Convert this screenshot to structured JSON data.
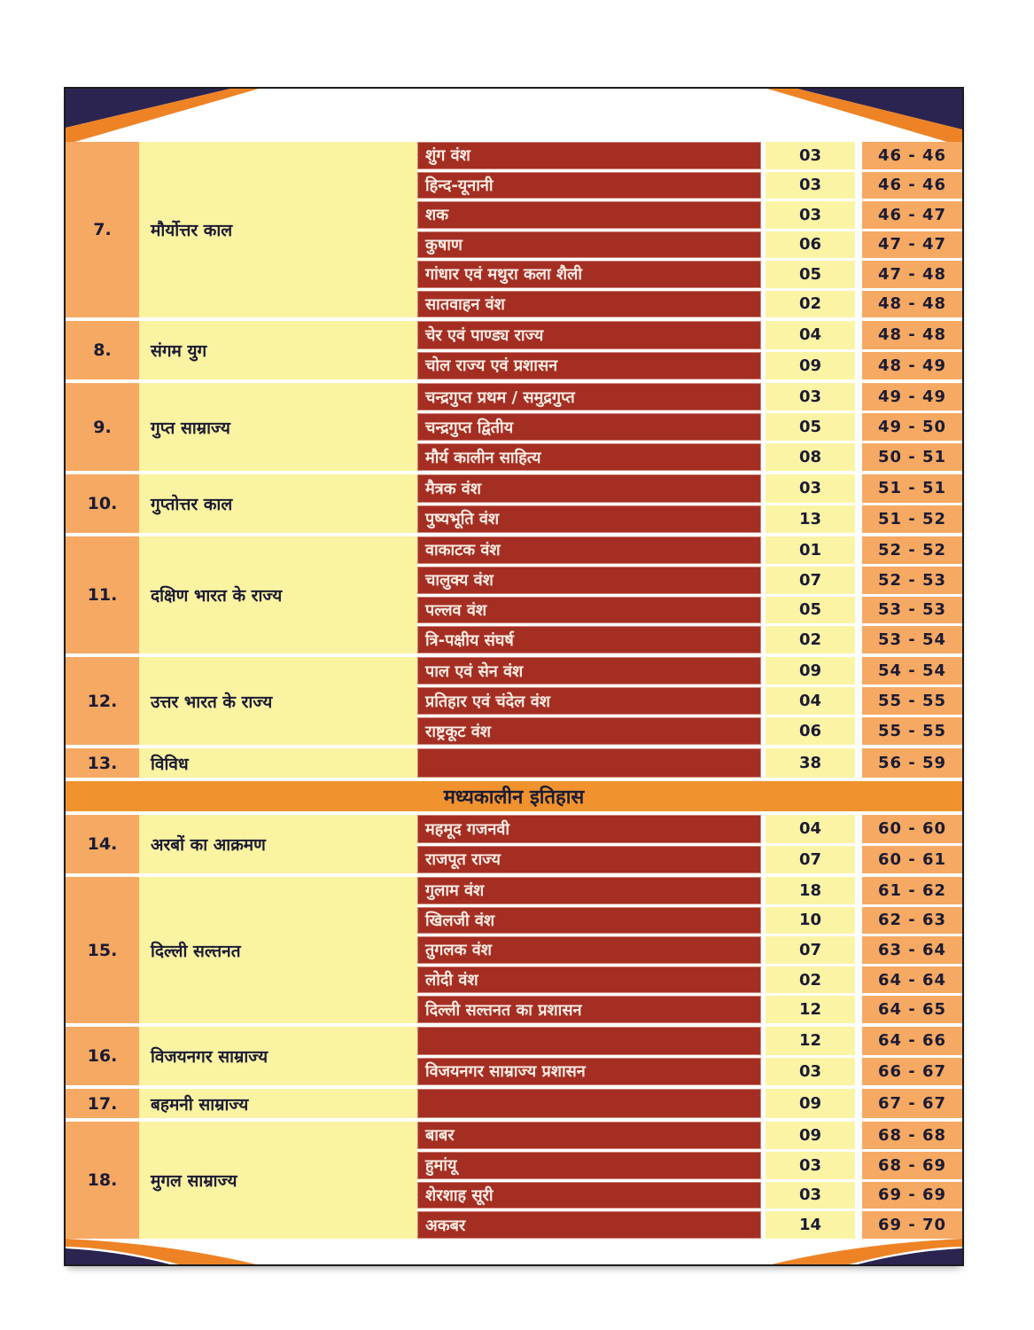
{
  "band": {
    "label": "मध्यकालीन इतिहास"
  },
  "colors": {
    "num_cell": "#F6A963",
    "topic_cell": "#FAF3A2",
    "sub_cell": "#A52E23",
    "count_cell": "#FCF4A5",
    "pages_cell": "#F6A963",
    "band_bg": "#F0922E",
    "corner_orange": "#EE8326",
    "corner_navy": "#2B2450",
    "dark_text": "#1B1B33",
    "sub_text": "#F9EDE4"
  },
  "blocks": [
    {
      "type": "section",
      "num": "7.",
      "topic": "मौर्योत्तर काल",
      "rows": [
        {
          "title": "शुंग वंश",
          "count": "03",
          "pages": "46 - 46"
        },
        {
          "title": "हिन्द-यूनानी",
          "count": "03",
          "pages": "46 - 46"
        },
        {
          "title": "शक",
          "count": "03",
          "pages": "46 - 47"
        },
        {
          "title": "कुषाण",
          "count": "06",
          "pages": "47 - 47"
        },
        {
          "title": "गांधार एवं मथुरा कला शैली",
          "count": "05",
          "pages": "47 - 48"
        },
        {
          "title": "सातवाहन वंश",
          "count": "02",
          "pages": "48 - 48"
        }
      ]
    },
    {
      "type": "section",
      "num": "8.",
      "topic": "संगम युग",
      "rows": [
        {
          "title": "चेर एवं पाण्ड्य राज्य",
          "count": "04",
          "pages": "48 - 48"
        },
        {
          "title": "चोल राज्य एवं प्रशासन",
          "count": "09",
          "pages": "48 - 49"
        }
      ]
    },
    {
      "type": "section",
      "num": "9.",
      "topic": "गुप्त साम्राज्य",
      "rows": [
        {
          "title": "चन्द्रगुप्त प्रथम / समुद्रगुप्त",
          "count": "03",
          "pages": "49 - 49"
        },
        {
          "title": "चन्द्रगुप्त द्वितीय",
          "count": "05",
          "pages": "49 - 50"
        },
        {
          "title": "मौर्य कालीन साहित्य",
          "count": "08",
          "pages": "50 - 51"
        }
      ]
    },
    {
      "type": "section",
      "num": "10.",
      "topic": "गुप्तोत्तर काल",
      "rows": [
        {
          "title": "मैत्रक वंश",
          "count": "03",
          "pages": "51 - 51"
        },
        {
          "title": "पुष्यभूति वंश",
          "count": "13",
          "pages": "51 - 52"
        }
      ]
    },
    {
      "type": "section",
      "num": "11.",
      "topic": "दक्षिण भारत के राज्य",
      "rows": [
        {
          "title": "वाकाटक वंश",
          "count": "01",
          "pages": "52 - 52"
        },
        {
          "title": "चालुक्य वंश",
          "count": "07",
          "pages": "52 - 53"
        },
        {
          "title": "पल्लव वंश",
          "count": "05",
          "pages": "53 - 53"
        },
        {
          "title": "त्रि-पक्षीय संघर्ष",
          "count": "02",
          "pages": "53 - 54"
        }
      ]
    },
    {
      "type": "section",
      "num": "12.",
      "topic": "उत्तर भारत के राज्य",
      "rows": [
        {
          "title": "पाल एवं सेन वंश",
          "count": "09",
          "pages": "54 - 54"
        },
        {
          "title": "प्रतिहार एवं चंदेल वंश",
          "count": "04",
          "pages": "55 - 55"
        },
        {
          "title": "राष्ट्रकूट वंश",
          "count": "06",
          "pages": "55 - 55"
        }
      ]
    },
    {
      "type": "section",
      "num": "13.",
      "topic": "विविध",
      "rows": [
        {
          "title": "",
          "count": "38",
          "pages": "56 - 59"
        }
      ]
    },
    {
      "type": "band",
      "label": "मध्यकालीन इतिहास"
    },
    {
      "type": "section",
      "num": "14.",
      "topic": "अरबों का आक्रमण",
      "rows": [
        {
          "title": "महमूद गजनवी",
          "count": "04",
          "pages": "60 - 60"
        },
        {
          "title": "राजपूत राज्य",
          "count": "07",
          "pages": "60 - 61"
        }
      ]
    },
    {
      "type": "section",
      "num": "15.",
      "topic": "दिल्ली सल्तनत",
      "rows": [
        {
          "title": "गुलाम वंश",
          "count": "18",
          "pages": "61 - 62"
        },
        {
          "title": "खिलजी वंश",
          "count": "10",
          "pages": "62 - 63"
        },
        {
          "title": "तुगलक वंश",
          "count": "07",
          "pages": "63 - 64"
        },
        {
          "title": "लोदी वंश",
          "count": "02",
          "pages": "64 - 64"
        },
        {
          "title": "दिल्ली सल्तनत का प्रशासन",
          "count": "12",
          "pages": "64 - 65"
        }
      ]
    },
    {
      "type": "section",
      "num": "16.",
      "topic": "विजयनगर साम्राज्य",
      "rows": [
        {
          "title": "",
          "count": "12",
          "pages": "64 - 66"
        },
        {
          "title": "विजयनगर साम्राज्य प्रशासन",
          "count": "03",
          "pages": "66 - 67"
        }
      ]
    },
    {
      "type": "section",
      "num": "17.",
      "topic": "बहमनी साम्राज्य",
      "rows": [
        {
          "title": "",
          "count": "09",
          "pages": "67 - 67"
        }
      ]
    },
    {
      "type": "section",
      "num": "18.",
      "topic": "मुगल साम्राज्य",
      "rows": [
        {
          "title": "बाबर",
          "count": "09",
          "pages": "68 - 68"
        },
        {
          "title": "हुमांयू",
          "count": "03",
          "pages": "68 - 69"
        },
        {
          "title": "शेरशाह सूरी",
          "count": "03",
          "pages": "69 - 69"
        },
        {
          "title": "अकबर",
          "count": "14",
          "pages": "69 - 70"
        }
      ]
    }
  ]
}
